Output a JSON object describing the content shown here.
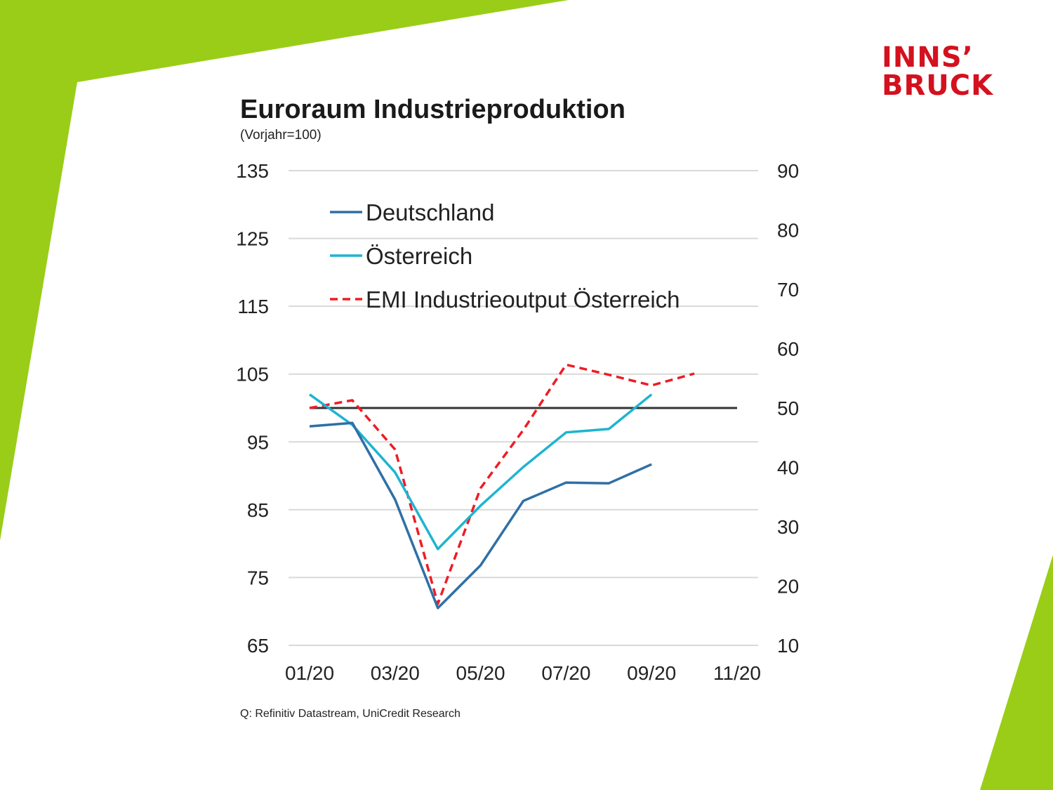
{
  "logo": {
    "line1": "INNS’",
    "line2": "BRUCK",
    "color": "#d4111e"
  },
  "background": {
    "accent_color": "#9acd18"
  },
  "chart_data": {
    "type": "line",
    "title": "Euroraum Industrieproduktion",
    "subtitle": "(Vorjahr=100)",
    "source": "Q: Refinitiv Datastream, UniCredit Research",
    "x_ticks": [
      "01/20",
      "03/20",
      "05/20",
      "07/20",
      "09/20",
      "11/20"
    ],
    "x_range": [
      1,
      11
    ],
    "y_left": {
      "range": [
        65,
        135
      ],
      "ticks": [
        135,
        125,
        115,
        105,
        95,
        85,
        75,
        65
      ]
    },
    "y_right": {
      "range": [
        10,
        90
      ],
      "ticks": [
        90,
        80,
        70,
        60,
        50,
        40,
        30,
        20,
        10
      ]
    },
    "reference_line": {
      "value": 100,
      "axis": "left",
      "x_from": 1,
      "x_to": 11,
      "color": "#333333"
    },
    "series": [
      {
        "name": "Deutschland",
        "axis": "left",
        "color": "#2f6fa5",
        "dash": "solid",
        "x": [
          1,
          2,
          3,
          4,
          5,
          6,
          7,
          8,
          9
        ],
        "values": [
          97.3,
          97.8,
          86.5,
          70.5,
          76.8,
          86.3,
          89.0,
          88.9,
          91.7
        ]
      },
      {
        "name": "Österreich",
        "axis": "left",
        "color": "#1eb4d0",
        "dash": "solid",
        "x": [
          1,
          2,
          3,
          4,
          5,
          6,
          7,
          8,
          9
        ],
        "values": [
          102.0,
          97.5,
          90.5,
          79.2,
          85.6,
          91.3,
          96.4,
          96.9,
          102.0
        ]
      },
      {
        "name": "EMI Industrieoutput Österreich",
        "axis": "right",
        "color": "#ee1c25",
        "dash": "dashed",
        "x": [
          1,
          2,
          3,
          4,
          5,
          6,
          7,
          8,
          9,
          10
        ],
        "values": [
          50.0,
          51.3,
          43.0,
          17.0,
          36.5,
          46.3,
          57.3,
          55.6,
          53.8,
          55.8
        ]
      }
    ]
  }
}
